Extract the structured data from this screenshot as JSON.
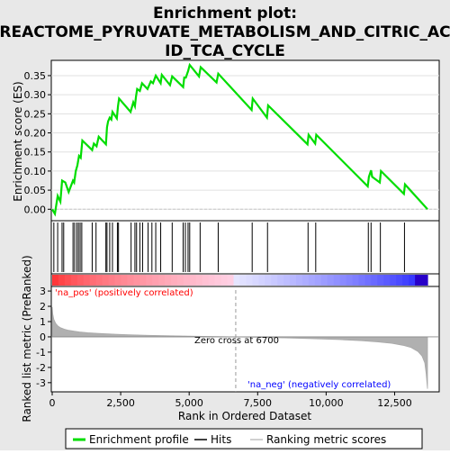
{
  "chart_data": {
    "type": "line",
    "title_line1": "Enrichment plot:",
    "title_line2": "REACTOME_PYRUVATE_METABOLISM_AND_CITRIC_AC",
    "title_line3": "ID_TCA_CYCLE",
    "top_panel": {
      "ylabel": "Enrichment score (ES)",
      "ylim": [
        -0.03,
        0.39
      ],
      "yticks": [
        0.0,
        0.05,
        0.1,
        0.15,
        0.2,
        0.25,
        0.3,
        0.35
      ],
      "ytick_labels": [
        "0.00",
        "0.05",
        "0.10",
        "0.15",
        "0.20",
        "0.25",
        "0.30",
        "0.35"
      ],
      "series": [
        {
          "name": "Enrichment profile",
          "color": "#00dd00",
          "x": [
            0,
            100,
            200,
            300,
            360,
            480,
            600,
            760,
            800,
            860,
            920,
            980,
            1040,
            1100,
            1460,
            1520,
            1620,
            1700,
            1960,
            2000,
            2040,
            2100,
            2160,
            2200,
            2360,
            2400,
            2440,
            2860,
            2960,
            3020,
            3060,
            3100,
            3200,
            3280,
            3480,
            3600,
            3680,
            3780,
            3960,
            4000,
            4300,
            4380,
            4780,
            4820,
            4880,
            4960,
            5020,
            5360,
            5420,
            6000,
            6060,
            7280,
            7320,
            7840,
            7880,
            9320,
            9360,
            9600,
            9640,
            11520,
            11560,
            11640,
            11680,
            11960,
            12000,
            12840,
            12880,
            13700
          ],
          "y": [
            0.0,
            -0.012,
            0.035,
            0.02,
            0.075,
            0.07,
            0.045,
            0.075,
            0.07,
            0.1,
            0.115,
            0.14,
            0.135,
            0.18,
            0.155,
            0.172,
            0.165,
            0.19,
            0.17,
            0.215,
            0.23,
            0.24,
            0.235,
            0.255,
            0.238,
            0.27,
            0.29,
            0.255,
            0.28,
            0.27,
            0.295,
            0.315,
            0.31,
            0.33,
            0.315,
            0.335,
            0.33,
            0.35,
            0.33,
            0.352,
            0.325,
            0.348,
            0.32,
            0.345,
            0.345,
            0.362,
            0.378,
            0.348,
            0.372,
            0.332,
            0.355,
            0.26,
            0.29,
            0.24,
            0.272,
            0.17,
            0.195,
            0.172,
            0.195,
            0.06,
            0.085,
            0.102,
            0.085,
            0.07,
            0.1,
            0.04,
            0.065,
            0.0
          ]
        }
      ]
    },
    "hits": [
      60,
      200,
      360,
      420,
      760,
      820,
      900,
      960,
      1020,
      1080,
      1460,
      1600,
      1960,
      2000,
      2100,
      2200,
      2380,
      2420,
      2880,
      3020,
      3080,
      3200,
      3300,
      3500,
      3640,
      3780,
      3960,
      4380,
      4780,
      4860,
      4960,
      5020,
      5400,
      6060,
      7300,
      7860,
      9340,
      9620,
      11540,
      11640,
      11980,
      12860
    ],
    "bottom_panel": {
      "ylabel": "Ranked list metric (PreRanked)",
      "xlabel": "Rank in Ordered Dataset",
      "ylim": [
        -3.6,
        3.3
      ],
      "yticks": [
        -3,
        -2,
        -1,
        0,
        1,
        2,
        3
      ],
      "ytick_labels": [
        "-3",
        "-2",
        "-1",
        "0",
        "1",
        "2",
        "3"
      ],
      "metric_curve": {
        "x": [
          0,
          20,
          60,
          120,
          200,
          300,
          450,
          600,
          800,
          1000,
          1300,
          1700,
          2200,
          2800,
          3500,
          4300,
          5200,
          6000,
          6700,
          7500,
          8500,
          9500,
          10500,
          11300,
          11900,
          12400,
          12800,
          13100,
          13350,
          13500,
          13600,
          13650,
          13700
        ],
        "y": [
          1.95,
          1.5,
          1.15,
          0.9,
          0.72,
          0.6,
          0.5,
          0.43,
          0.37,
          0.32,
          0.27,
          0.22,
          0.18,
          0.14,
          0.1,
          0.07,
          0.04,
          0.02,
          0.0,
          -0.03,
          -0.07,
          -0.12,
          -0.18,
          -0.25,
          -0.33,
          -0.42,
          -0.55,
          -0.7,
          -0.95,
          -1.25,
          -1.7,
          -2.4,
          -3.4
        ]
      },
      "annotations": {
        "pos_label": "'na_pos' (positively correlated)",
        "neg_label": "'na_neg' (negatively correlated)",
        "zero_cross": "Zero cross at 6700",
        "zero_cross_x": 6700
      }
    },
    "x_axis": {
      "xlim": [
        0,
        13700
      ],
      "xticks": [
        0,
        2500,
        5000,
        7500,
        10000,
        12500
      ],
      "xtick_labels": [
        "0",
        "2,500",
        "5,000",
        "7,500",
        "10,000",
        "12,500"
      ]
    },
    "legend": {
      "placement": "bottom",
      "items": [
        {
          "label": "Enrichment profile",
          "color": "#00dd00",
          "kind": "line"
        },
        {
          "label": "Hits",
          "color": "#000000",
          "kind": "line"
        },
        {
          "label": "Ranking metric scores",
          "color": "#c0c0c0",
          "kind": "line"
        }
      ]
    },
    "colors": {
      "pos": "#ff0000",
      "neg": "#0000ff",
      "metric_fill": "#b0b0b0",
      "zero_line": "#9a9a9a"
    }
  }
}
